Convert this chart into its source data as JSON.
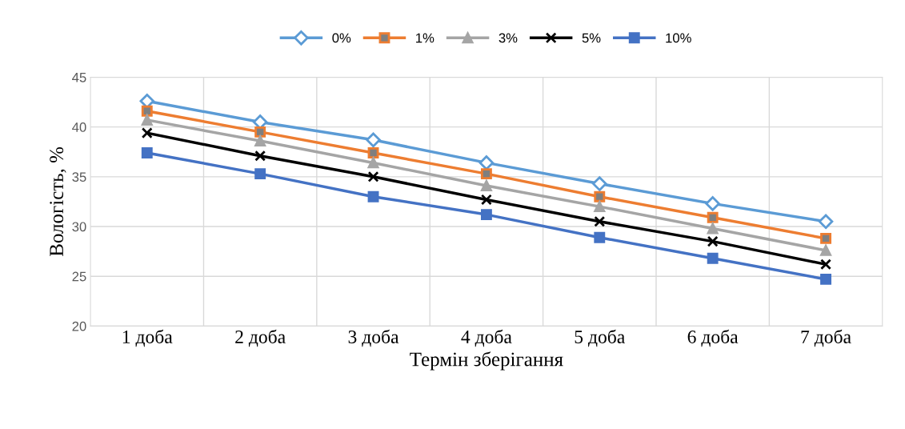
{
  "chart_data": {
    "type": "line",
    "xlabel": "Термін зберігання",
    "ylabel": "Вологість, %",
    "categories": [
      "1 доба",
      "2 доба",
      "3 доба",
      "4 доба",
      "5 доба",
      "6 доба",
      "7 доба"
    ],
    "ylim": [
      20,
      45
    ],
    "yticks": [
      20,
      25,
      30,
      35,
      40,
      45
    ],
    "grid": true,
    "legend": "top",
    "series": [
      {
        "name": "0%",
        "color": "#5b9bd5",
        "marker": "diamond",
        "values": [
          42.6,
          40.5,
          38.7,
          36.4,
          34.3,
          32.3,
          30.5
        ]
      },
      {
        "name": "1%",
        "color": "#ed7d31",
        "marker": "square",
        "values": [
          41.6,
          39.5,
          37.4,
          35.3,
          33.0,
          30.9,
          28.8
        ]
      },
      {
        "name": "3%",
        "color": "#a5a5a5",
        "marker": "triangle",
        "values": [
          40.7,
          38.6,
          36.4,
          34.1,
          32.0,
          29.8,
          27.6
        ]
      },
      {
        "name": "5%",
        "color": "#000000",
        "marker": "cross",
        "values": [
          39.4,
          37.1,
          35.0,
          32.7,
          30.5,
          28.5,
          26.2
        ]
      },
      {
        "name": "10%",
        "color": "#4472c4",
        "marker": "square",
        "values": [
          37.4,
          35.3,
          33.0,
          31.2,
          28.9,
          26.8,
          24.7
        ]
      }
    ]
  }
}
